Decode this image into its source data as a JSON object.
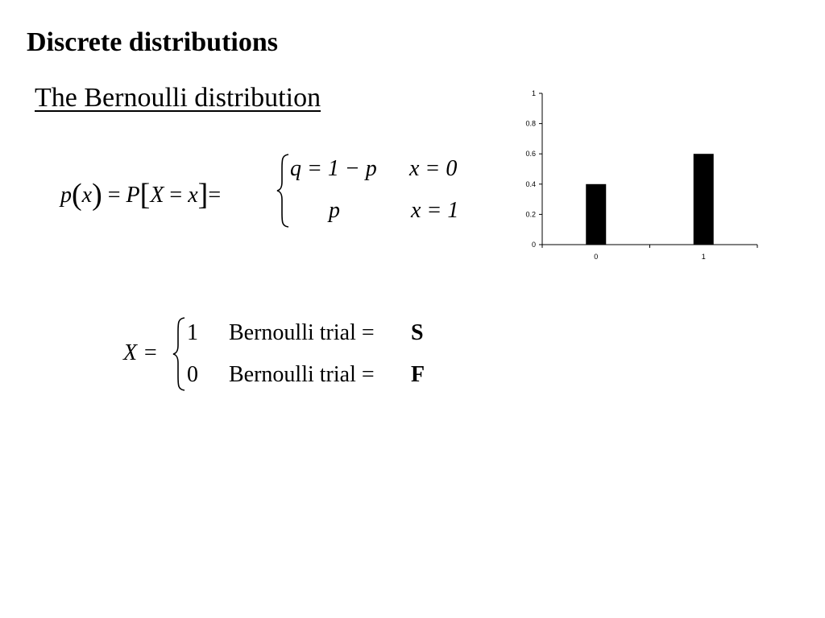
{
  "slide": {
    "title": "Discrete distributions",
    "subtitle": "The Bernoulli distribution"
  },
  "pmf_formula": {
    "lhs": {
      "p": "p",
      "open_paren": "(",
      "x": "x",
      "close_paren": ")",
      "eq1": "=",
      "P": "P",
      "open_bracket": "[",
      "X": "X",
      "eq2": "=",
      "x2": "x",
      "close_bracket": "]",
      "eq3": "="
    },
    "cases": [
      {
        "value": "q = 1 − p",
        "condition": "x = 0"
      },
      {
        "value": "p",
        "condition": "x = 1"
      }
    ]
  },
  "indicator_formula": {
    "lhs": "X =",
    "cases": [
      {
        "value": "1",
        "text": "Bernoulli trial =",
        "outcome": "S"
      },
      {
        "value": "0",
        "text": "Bernoulli trial =",
        "outcome": "F"
      }
    ]
  },
  "chart_data": {
    "type": "bar",
    "categories": [
      "0",
      "1"
    ],
    "values": [
      0.4,
      0.6
    ],
    "ylim": [
      0,
      1
    ],
    "yticks": [
      "0",
      "0.2",
      "0.4",
      "0.6",
      "0.8",
      "1"
    ],
    "xticks": [
      "0",
      "1"
    ],
    "bar_color": "#000000",
    "grid": false
  }
}
